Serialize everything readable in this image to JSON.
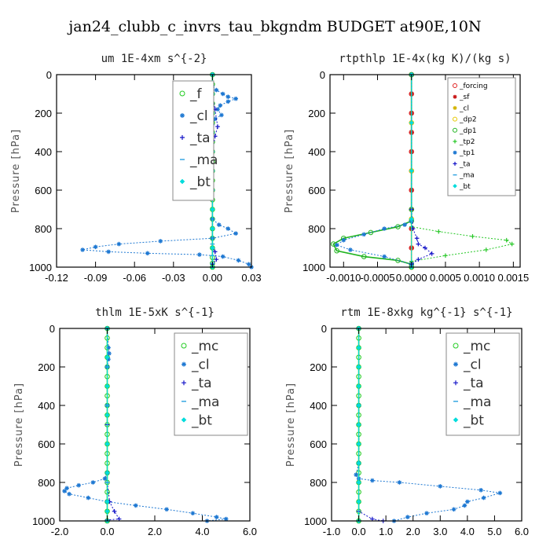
{
  "figure": {
    "suptitle": "jan24_clubb_c_invrs_tau_bkgndm  BUDGET at90E,10N"
  },
  "chart_data": [
    {
      "type": "line",
      "title": "um   1E-4xm s^{-2}",
      "ylabel": "Pressure [hPa]",
      "xlim": [
        -0.12,
        0.03
      ],
      "ylim": [
        1000,
        0
      ],
      "xticks": [
        "-0.12",
        "-0.09",
        "-0.06",
        "-0.03",
        "0.00",
        "0.03"
      ],
      "xtick_values": [
        -0.12,
        -0.09,
        -0.06,
        -0.03,
        0.0,
        0.03
      ],
      "yticks": [
        "0",
        "200",
        "400",
        "600",
        "800",
        "1000"
      ],
      "ytick_values": [
        0,
        200,
        400,
        600,
        800,
        1000
      ],
      "legend_position": "top-right",
      "legend_style": "big",
      "series": [
        {
          "name": "_f",
          "color": "#22cc22",
          "marker": "circle",
          "x": [
            0,
            0,
            0,
            0,
            0,
            0,
            0,
            0,
            0,
            0,
            0,
            0,
            0,
            0,
            0,
            0,
            0,
            0,
            0,
            0,
            0,
            0
          ],
          "y": [
            0,
            50,
            100,
            150,
            200,
            250,
            300,
            350,
            400,
            450,
            500,
            550,
            600,
            650,
            700,
            750,
            800,
            850,
            900,
            950,
            980,
            1000
          ]
        },
        {
          "name": "_cl",
          "color": "#1e78d2",
          "marker": "star",
          "x": [
            0.0,
            0.0,
            0.003,
            0.008,
            0.012,
            0.018,
            0.012,
            0.006,
            0.004,
            0.007,
            0.002,
            0.0,
            0.0,
            0.0,
            0.005,
            0.012,
            0.018,
            0.0,
            -0.04,
            -0.072,
            -0.09,
            -0.1,
            -0.08,
            -0.05,
            -0.01,
            0.008,
            0.02,
            0.028,
            0.03
          ],
          "y": [
            0,
            60,
            80,
            100,
            115,
            125,
            140,
            160,
            180,
            210,
            230,
            260,
            500,
            750,
            780,
            800,
            825,
            850,
            865,
            880,
            895,
            910,
            920,
            928,
            935,
            945,
            965,
            985,
            1000
          ]
        },
        {
          "name": "_ta",
          "color": "#1414c8",
          "marker": "plus",
          "x": [
            0,
            0,
            0.002,
            0.004,
            0.002,
            0,
            0,
            0,
            0,
            0.002,
            0.003,
            0,
            0
          ],
          "y": [
            0,
            100,
            180,
            270,
            320,
            400,
            600,
            800,
            900,
            920,
            960,
            985,
            1000
          ]
        },
        {
          "name": "_ma",
          "color": "#2aa0e0",
          "marker": "dash",
          "x": [
            0,
            0,
            0,
            0,
            0,
            0,
            0,
            0,
            0,
            0,
            0,
            0,
            0
          ],
          "y": [
            0,
            100,
            200,
            300,
            400,
            500,
            600,
            700,
            800,
            880,
            940,
            980,
            1000
          ]
        },
        {
          "name": "_bt",
          "color": "#00dcdc",
          "marker": "diamond",
          "x": [
            0,
            0,
            0,
            0,
            0,
            0,
            0,
            0,
            0,
            0,
            0
          ],
          "y": [
            0,
            100,
            200,
            300,
            400,
            500,
            600,
            700,
            800,
            900,
            1000
          ]
        }
      ]
    },
    {
      "type": "line",
      "title": "rtpthlp   1E-4x(kg K)/(kg s)",
      "ylabel": "Pressure [hPa]",
      "xlim": [
        -0.0012,
        0.0016
      ],
      "ylim": [
        1000,
        0
      ],
      "xticks": [
        "-0.0010",
        "-0.0005",
        "0.0000",
        "0.0005",
        "0.0010",
        "0.0015"
      ],
      "xtick_values": [
        -0.001,
        -0.0005,
        0.0,
        0.0005,
        0.001,
        0.0015
      ],
      "yticks": [
        "0",
        "200",
        "400",
        "600",
        "800",
        "1000"
      ],
      "ytick_values": [
        0,
        200,
        400,
        600,
        800,
        1000
      ],
      "legend_position": "top-right",
      "legend_style": "small",
      "series": [
        {
          "name": "_forcing",
          "color": "#e02020",
          "marker": "circle",
          "x": [
            0,
            0,
            0,
            0,
            0,
            0,
            0,
            0,
            0,
            0,
            0
          ],
          "y": [
            0,
            100,
            200,
            300,
            400,
            500,
            600,
            700,
            800,
            900,
            1000
          ]
        },
        {
          "name": "_sf",
          "color": "#c81414",
          "marker": "star",
          "x": [
            0,
            0,
            0,
            0,
            0,
            0,
            0,
            0,
            0,
            0,
            0
          ],
          "y": [
            0,
            100,
            200,
            300,
            400,
            500,
            600,
            700,
            800,
            900,
            1000
          ]
        },
        {
          "name": "_cl",
          "color": "#d4b400",
          "marker": "star",
          "x": [
            0,
            0,
            0,
            0,
            0
          ],
          "y": [
            0,
            250,
            500,
            750,
            1000
          ]
        },
        {
          "name": "_dp2",
          "color": "#e6c800",
          "marker": "circle",
          "x": [
            0,
            0,
            0,
            0,
            0
          ],
          "y": [
            0,
            250,
            500,
            750,
            1000
          ]
        },
        {
          "name": "_dp1",
          "color": "#20b420",
          "marker": "circle",
          "x": [
            0,
            0,
            0,
            -0.0002,
            -0.0006,
            -0.001,
            -0.00115,
            -0.0011,
            -0.0007,
            -0.0002,
            0,
            0
          ],
          "y": [
            0,
            700,
            760,
            790,
            820,
            850,
            880,
            915,
            945,
            965,
            985,
            1000
          ]
        },
        {
          "name": "_tp2",
          "color": "#28c828",
          "marker": "plus",
          "x": [
            0,
            0,
            0,
            0.0004,
            0.0009,
            0.0014,
            0.00148,
            0.0011,
            0.0005,
            0,
            0
          ],
          "y": [
            0,
            750,
            790,
            815,
            840,
            860,
            880,
            910,
            940,
            970,
            1000
          ]
        },
        {
          "name": "_tp1",
          "color": "#1e78d2",
          "marker": "star",
          "x": [
            0,
            0,
            -0.0001,
            -0.0004,
            -0.0007,
            -0.001,
            -0.0011,
            -0.0009,
            -0.0004,
            0
          ],
          "y": [
            0,
            760,
            780,
            800,
            830,
            860,
            885,
            910,
            945,
            985
          ]
        },
        {
          "name": "_ta",
          "color": "#1414c8",
          "marker": "plus",
          "x": [
            0,
            0,
            2e-05,
            8e-05,
            0.0001,
            0.0002,
            0.0003,
            0.0001,
            0
          ],
          "y": [
            0,
            700,
            800,
            850,
            880,
            900,
            930,
            960,
            985
          ]
        },
        {
          "name": "_ma",
          "color": "#2aa0e0",
          "marker": "dash",
          "x": [
            0,
            0,
            0,
            0,
            0
          ],
          "y": [
            0,
            250,
            500,
            750,
            1000
          ]
        },
        {
          "name": "_bt",
          "color": "#00dcdc",
          "marker": "diamond",
          "x": [
            0,
            0,
            0,
            0,
            0
          ],
          "y": [
            0,
            250,
            500,
            750,
            1000
          ]
        }
      ]
    },
    {
      "type": "line",
      "title": "thlm   1E-5xK s^{-1}",
      "ylabel": "Pressure [hPa]",
      "xlim": [
        -2.0,
        6.0
      ],
      "ylim": [
        1000,
        0
      ],
      "xticks": [
        "-2.0",
        "0.0",
        "2.0",
        "4.0",
        "6.0"
      ],
      "xtick_values": [
        -2.0,
        0.0,
        2.0,
        4.0,
        6.0
      ],
      "yticks": [
        "0",
        "200",
        "400",
        "600",
        "800",
        "1000"
      ],
      "ytick_values": [
        0,
        200,
        400,
        600,
        800,
        1000
      ],
      "legend_position": "top-right",
      "legend_style": "big",
      "series": [
        {
          "name": "_mc",
          "color": "#22cc22",
          "marker": "circle",
          "x": [
            0,
            0,
            0,
            0,
            0,
            0,
            0,
            0,
            0,
            0,
            0,
            0,
            0,
            0,
            0,
            0,
            0,
            0,
            0,
            0,
            0
          ],
          "y": [
            0,
            50,
            100,
            150,
            200,
            250,
            300,
            350,
            400,
            450,
            500,
            550,
            600,
            650,
            700,
            750,
            800,
            850,
            900,
            950,
            1000
          ]
        },
        {
          "name": "_cl",
          "color": "#1e78d2",
          "marker": "star",
          "x": [
            0,
            0.05,
            0.08,
            0.05,
            0,
            0,
            0,
            -0.1,
            -0.6,
            -1.2,
            -1.7,
            -1.8,
            -1.6,
            -0.8,
            0,
            1.2,
            2.5,
            3.6,
            4.6,
            5.0,
            4.2
          ],
          "y": [
            0,
            100,
            130,
            160,
            200,
            400,
            750,
            780,
            800,
            815,
            830,
            845,
            860,
            880,
            900,
            920,
            940,
            960,
            980,
            990,
            1000
          ]
        },
        {
          "name": "_ta",
          "color": "#1414c8",
          "marker": "plus",
          "x": [
            0,
            0,
            0,
            0,
            0.1,
            0.3,
            0.5,
            0,
            0
          ],
          "y": [
            0,
            200,
            500,
            800,
            900,
            950,
            990,
            995,
            1000
          ]
        },
        {
          "name": "_ma",
          "color": "#2aa0e0",
          "marker": "dash",
          "x": [
            0,
            0,
            0,
            0,
            0,
            0
          ],
          "y": [
            0,
            200,
            400,
            600,
            800,
            1000
          ]
        },
        {
          "name": "_bt",
          "color": "#00dcdc",
          "marker": "diamond",
          "x": [
            0,
            0,
            0,
            0,
            0,
            0,
            0,
            0,
            0
          ],
          "y": [
            0,
            150,
            300,
            450,
            600,
            750,
            900,
            950,
            1000
          ]
        }
      ]
    },
    {
      "type": "line",
      "title": "rtm   1E-8xkg kg^{-1} s^{-1}",
      "ylabel": "Pressure [hPa]",
      "xlim": [
        -1.0,
        6.0
      ],
      "ylim": [
        1000,
        0
      ],
      "xticks": [
        "-1.0",
        "0.0",
        "1.0",
        "2.0",
        "3.0",
        "4.0",
        "5.0",
        "6.0"
      ],
      "xtick_values": [
        -1.0,
        0.0,
        1.0,
        2.0,
        3.0,
        4.0,
        5.0,
        6.0
      ],
      "yticks": [
        "0",
        "200",
        "400",
        "600",
        "800",
        "1000"
      ],
      "ytick_values": [
        0,
        200,
        400,
        600,
        800,
        1000
      ],
      "legend_position": "top-right",
      "legend_style": "big",
      "series": [
        {
          "name": "_mc",
          "color": "#22cc22",
          "marker": "circle",
          "x": [
            0,
            0,
            0,
            0,
            0,
            0,
            0,
            0,
            0,
            0,
            0,
            0,
            0,
            0,
            0,
            0,
            0,
            0,
            0,
            0,
            0
          ],
          "y": [
            0,
            50,
            100,
            150,
            200,
            250,
            300,
            350,
            400,
            450,
            500,
            550,
            600,
            650,
            700,
            750,
            800,
            850,
            900,
            950,
            1000
          ]
        },
        {
          "name": "_cl",
          "color": "#1e78d2",
          "marker": "star",
          "x": [
            0,
            0,
            0,
            -0.1,
            0,
            0.5,
            1.5,
            3.0,
            4.5,
            5.2,
            4.6,
            4.0,
            3.9,
            3.5,
            2.5,
            1.8,
            1.3
          ],
          "y": [
            0,
            400,
            700,
            760,
            780,
            790,
            800,
            820,
            840,
            855,
            880,
            900,
            920,
            940,
            960,
            980,
            1000
          ]
        },
        {
          "name": "_ta",
          "color": "#1414c8",
          "marker": "plus",
          "x": [
            0,
            0,
            0,
            0,
            0.5,
            0.9,
            0
          ],
          "y": [
            0,
            500,
            800,
            950,
            990,
            1000,
            1000
          ]
        },
        {
          "name": "_ma",
          "color": "#2aa0e0",
          "marker": "dash",
          "x": [
            0,
            0,
            0,
            0,
            0,
            0
          ],
          "y": [
            0,
            200,
            400,
            600,
            800,
            1000
          ]
        },
        {
          "name": "_bt",
          "color": "#00dcdc",
          "marker": "diamond",
          "x": [
            0,
            0,
            0,
            0,
            0,
            0,
            0,
            0,
            0,
            0,
            0
          ],
          "y": [
            0,
            100,
            200,
            300,
            400,
            500,
            600,
            700,
            800,
            900,
            1000
          ]
        }
      ]
    }
  ]
}
